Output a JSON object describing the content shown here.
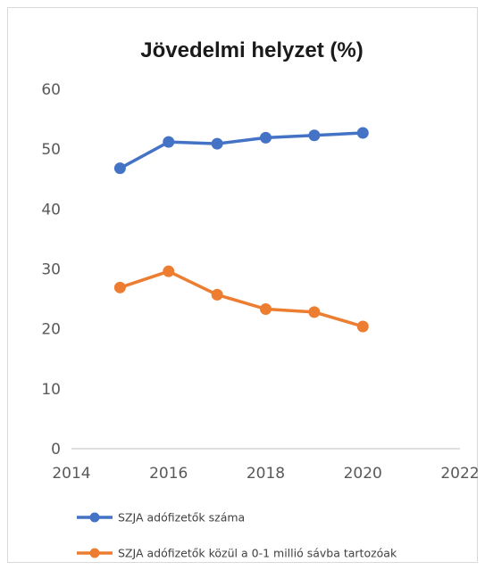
{
  "chart_data": {
    "type": "scatter",
    "title": "Jövedelmi helyzet (%)",
    "xlabel": "",
    "ylabel": "",
    "xlim": [
      2014,
      2022
    ],
    "ylim": [
      0,
      60
    ],
    "x_ticks": [
      "2014",
      "2016",
      "2018",
      "2020",
      "2022"
    ],
    "y_ticks": [
      "0",
      "10",
      "20",
      "30",
      "40",
      "50",
      "60"
    ],
    "grid": false,
    "legend_position": "bottom",
    "series": [
      {
        "name": "SZJA adófizetők száma",
        "color": "#4472c4",
        "x": [
          2015,
          2016,
          2017,
          2018,
          2019,
          2020
        ],
        "values": [
          46.8,
          51.2,
          50.9,
          51.9,
          52.3,
          52.7
        ]
      },
      {
        "name": "SZJA adófizetők közül a 0-1 millió sávba tartozóak",
        "color": "#ed7d31",
        "x": [
          2015,
          2016,
          2017,
          2018,
          2019,
          2020
        ],
        "values": [
          26.9,
          29.6,
          25.7,
          23.3,
          22.8,
          20.4
        ]
      }
    ]
  }
}
